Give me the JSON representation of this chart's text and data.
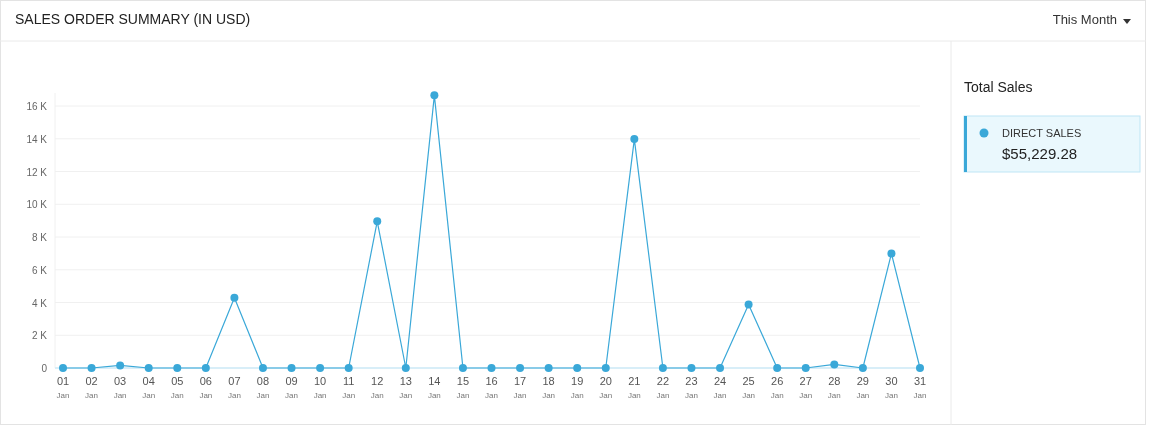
{
  "chart_data": {
    "type": "line",
    "title": "SALES ORDER SUMMARY (IN USD)",
    "legend_title": "Total Sales",
    "annotations": [
      "This Month",
      "$55,229.28"
    ],
    "categories": [
      "01 Jan",
      "02 Jan",
      "03 Jan",
      "04 Jan",
      "05 Jan",
      "06 Jan",
      "07 Jan",
      "08 Jan",
      "09 Jan",
      "10 Jan",
      "11 Jan",
      "12 Jan",
      "13 Jan",
      "14 Jan",
      "15 Jan",
      "16 Jan",
      "17 Jan",
      "18 Jan",
      "19 Jan",
      "20 Jan",
      "21 Jan",
      "22 Jan",
      "23 Jan",
      "24 Jan",
      "25 Jan",
      "26 Jan",
      "27 Jan",
      "28 Jan",
      "29 Jan",
      "30 Jan",
      "31 Jan"
    ],
    "series": [
      {
        "name": "DIRECT SALES",
        "color": "#3aa8d8",
        "values": [
          0,
          0,
          160,
          0,
          0,
          0,
          4290,
          0,
          0,
          0,
          0,
          8960,
          0,
          16650,
          0,
          0,
          0,
          0,
          0,
          0,
          13980,
          0,
          0,
          0,
          3880,
          0,
          0,
          220,
          0,
          6990,
          0
        ]
      }
    ],
    "ylim": [
      0,
      16800
    ],
    "yticks": [
      0,
      {
        "value": 2000,
        "label": "2 K"
      },
      {
        "value": 4000,
        "label": "4 K"
      },
      {
        "value": 6000,
        "label": "6 K"
      },
      {
        "value": 8000,
        "label": "8 K"
      },
      {
        "value": 10000,
        "label": "10 K"
      },
      {
        "value": 12000,
        "label": "12 K"
      },
      {
        "value": 14000,
        "label": "14 K"
      },
      {
        "value": 16000,
        "label": "16 K"
      }
    ],
    "grid": "y",
    "legend": "right",
    "marker": "circle",
    "line_style": "solid"
  }
}
